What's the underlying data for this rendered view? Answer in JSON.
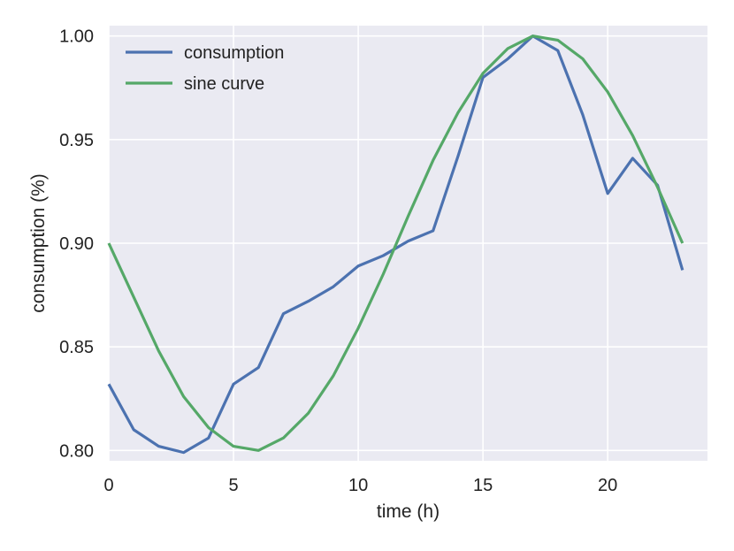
{
  "chart_data": {
    "type": "line",
    "title": "",
    "xlabel": "time (h)",
    "ylabel": "consumption (%)",
    "xlim": [
      0,
      24
    ],
    "ylim": [
      0.795,
      1.005
    ],
    "xticks": [
      0,
      5,
      10,
      15,
      20
    ],
    "yticks": [
      0.8,
      0.85,
      0.9,
      0.95,
      1.0
    ],
    "xtick_labels": [
      "0",
      "5",
      "10",
      "15",
      "20"
    ],
    "ytick_labels": [
      "0.80",
      "0.85",
      "0.90",
      "0.95",
      "1.00"
    ],
    "grid": true,
    "legend_position": "top-left",
    "background": "#eaeaf2",
    "x": [
      0,
      1,
      2,
      3,
      4,
      5,
      6,
      7,
      8,
      9,
      10,
      11,
      12,
      13,
      14,
      15,
      16,
      17,
      18,
      19,
      20,
      21,
      22,
      23
    ],
    "series": [
      {
        "name": "consumption",
        "color": "#4c72b0",
        "values": [
          0.832,
          0.81,
          0.802,
          0.799,
          0.806,
          0.832,
          0.84,
          0.866,
          0.872,
          0.879,
          0.889,
          0.894,
          0.901,
          0.906,
          0.942,
          0.98,
          0.989,
          1.0,
          0.993,
          0.962,
          0.924,
          0.941,
          0.928,
          0.887
        ]
      },
      {
        "name": "sine curve",
        "color": "#55a868",
        "values": [
          0.9,
          0.874,
          0.848,
          0.826,
          0.811,
          0.802,
          0.8,
          0.806,
          0.818,
          0.836,
          0.859,
          0.885,
          0.913,
          0.94,
          0.963,
          0.982,
          0.994,
          1.0,
          0.998,
          0.989,
          0.973,
          0.952,
          0.927,
          0.9
        ]
      }
    ]
  }
}
